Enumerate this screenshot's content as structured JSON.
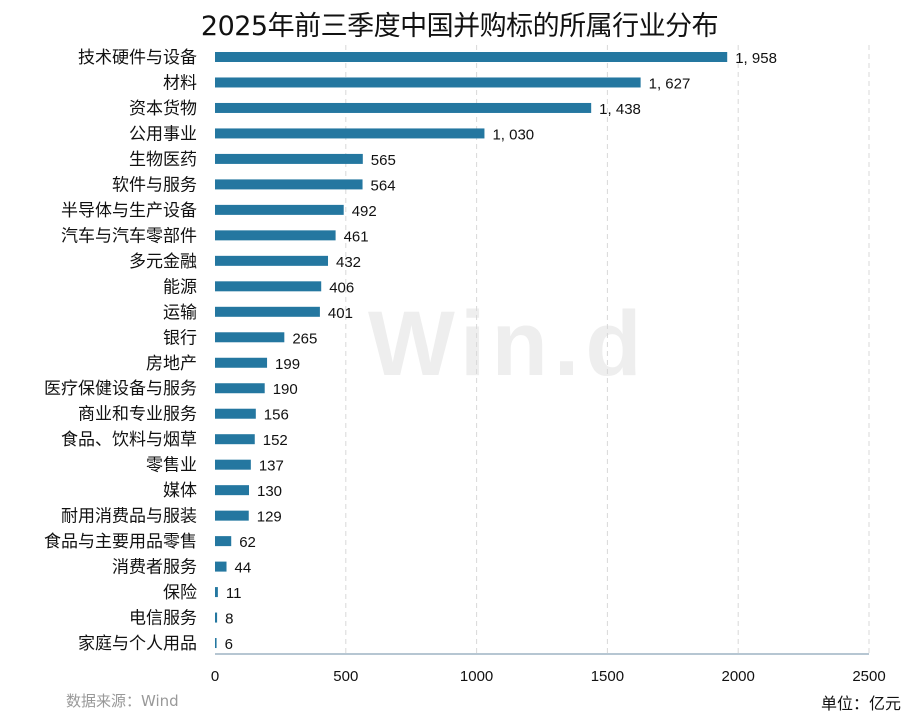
{
  "chart_data": {
    "type": "bar",
    "orientation": "horizontal",
    "title": "2025年前三季度中国并购标的所属行业分布",
    "categories": [
      "技术硬件与设备",
      "材料",
      "资本货物",
      "公用事业",
      "生物医药",
      "软件与服务",
      "半导体与生产设备",
      "汽车与汽车零部件",
      "多元金融",
      "能源",
      "运输",
      "银行",
      "房地产",
      "医疗保健设备与服务",
      "商业和专业服务",
      "食品、饮料与烟草",
      "零售业",
      "媒体",
      "耐用消费品与服装",
      "食品与主要用品零售",
      "消费者服务",
      "保险",
      "电信服务",
      "家庭与个人用品"
    ],
    "values": [
      1958,
      1627,
      1438,
      1030,
      565,
      564,
      492,
      461,
      432,
      406,
      401,
      265,
      199,
      190,
      156,
      152,
      137,
      130,
      129,
      62,
      44,
      11,
      8,
      6
    ],
    "data_labels": [
      "1, 958",
      "1, 627",
      "1, 438",
      "1, 030",
      "565",
      "564",
      "492",
      "461",
      "432",
      "406",
      "401",
      "265",
      "199",
      "190",
      "156",
      "152",
      "137",
      "130",
      "129",
      "62",
      "44",
      "11",
      "8",
      "6"
    ],
    "xlim": [
      0,
      2500
    ],
    "xticks": [
      "0",
      "500",
      "1000",
      "1500",
      "2000",
      "2500"
    ],
    "grid": "vertical dashed",
    "bar_color": "#2477a0",
    "source": "数据来源：Wind",
    "unit": "单位：亿元",
    "watermark": "Win.d"
  }
}
